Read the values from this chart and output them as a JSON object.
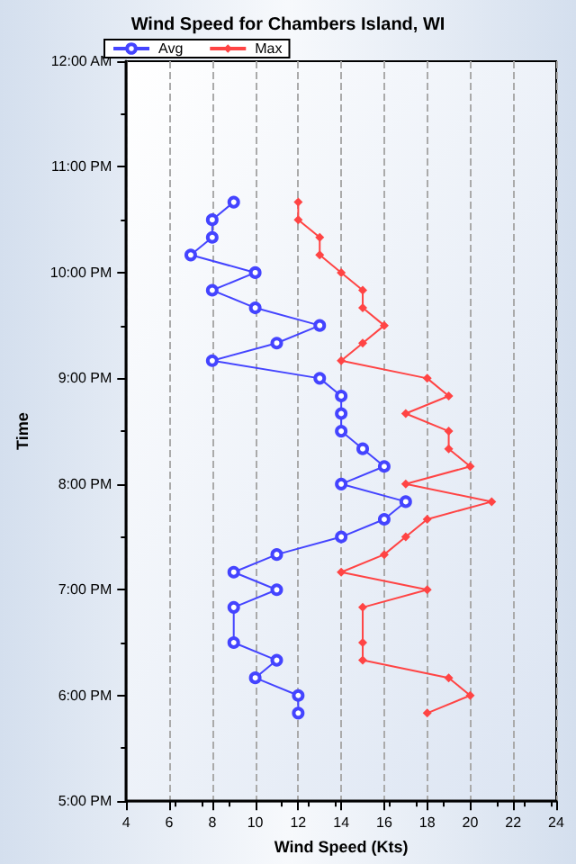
{
  "chart_data": {
    "type": "line",
    "title": "Wind Speed for Chambers Island, WI",
    "xlabel": "Wind Speed (Kts)",
    "ylabel": "Time",
    "orientation": "horizontal",
    "x": [
      17.8333,
      18,
      18.1667,
      18.3333,
      18.5,
      18.8333,
      19,
      19.1667,
      19.3333,
      19.5,
      19.6667,
      19.8333,
      20,
      20.1667,
      20.3333,
      20.5,
      20.6667,
      20.8333,
      21,
      21.1667,
      21.3333,
      21.5,
      21.6667,
      21.8333,
      22,
      22.1667,
      22.3333,
      22.5,
      22.6667
    ],
    "series": [
      {
        "name": "Avg",
        "color": "#4444ff",
        "marker": "circle",
        "values": [
          12,
          12,
          10,
          11,
          9,
          9,
          11,
          9,
          11,
          14,
          16,
          17,
          14,
          16,
          15,
          14,
          14,
          14,
          13,
          8,
          11,
          13,
          10,
          8,
          10,
          7,
          8,
          8,
          9
        ]
      },
      {
        "name": "Max",
        "color": "#ff4444",
        "marker": "diamond",
        "values": [
          18,
          20,
          19,
          15,
          15,
          15,
          18,
          14,
          16,
          17,
          18,
          21,
          17,
          20,
          19,
          19,
          17,
          19,
          18,
          14,
          15,
          16,
          15,
          15,
          14,
          13,
          13,
          12,
          12
        ]
      }
    ],
    "xlim": [
      4,
      24
    ],
    "xticks": [
      4,
      6,
      8,
      10,
      12,
      14,
      16,
      18,
      20,
      22,
      24
    ],
    "ylim": [
      17,
      24
    ],
    "yticks": [
      {
        "value": 17,
        "label": "5:00 PM"
      },
      {
        "value": 18,
        "label": "6:00 PM"
      },
      {
        "value": 19,
        "label": "7:00 PM"
      },
      {
        "value": 20,
        "label": "8:00 PM"
      },
      {
        "value": 21,
        "label": "9:00 PM"
      },
      {
        "value": 22,
        "label": "10:00 PM"
      },
      {
        "value": 23,
        "label": "11:00 PM"
      },
      {
        "value": 24,
        "label": "12:00 AM"
      }
    ],
    "grid": "x",
    "legend": "top left",
    "line_style": "solid"
  }
}
